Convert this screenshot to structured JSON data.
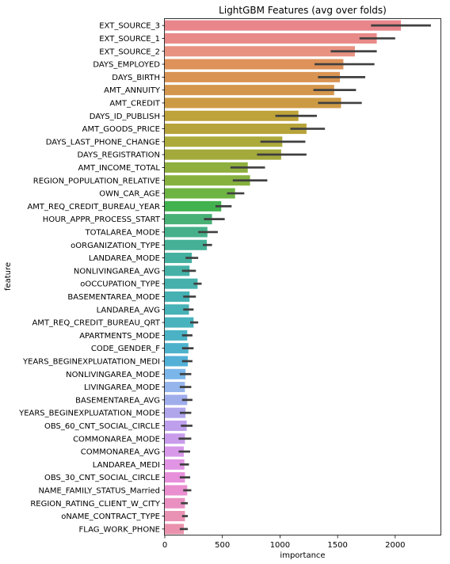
{
  "chart_data": {
    "type": "bar",
    "orientation": "horizontal",
    "title": "LightGBM Features (avg over folds)",
    "xlabel": "importance",
    "ylabel": "feature",
    "xlim": [
      0,
      2400
    ],
    "xticks": [
      0,
      500,
      1000,
      1500,
      2000
    ],
    "grid": false,
    "error_bars": true,
    "categories": [
      "EXT_SOURCE_3",
      "EXT_SOURCE_1",
      "EXT_SOURCE_2",
      "DAYS_EMPLOYED",
      "DAYS_BIRTH",
      "AMT_ANNUITY",
      "AMT_CREDIT",
      "DAYS_ID_PUBLISH",
      "AMT_GOODS_PRICE",
      "DAYS_LAST_PHONE_CHANGE",
      "DAYS_REGISTRATION",
      "AMT_INCOME_TOTAL",
      "REGION_POPULATION_RELATIVE",
      "OWN_CAR_AGE",
      "AMT_REQ_CREDIT_BUREAU_YEAR",
      "HOUR_APPR_PROCESS_START",
      "TOTALAREA_MODE",
      "oORGANIZATION_TYPE",
      "LANDAREA_MODE",
      "NONLIVINGAREA_AVG",
      "oOCCUPATION_TYPE",
      "BASEMENTAREA_MODE",
      "LANDAREA_AVG",
      "AMT_REQ_CREDIT_BUREAU_QRT",
      "APARTMENTS_MODE",
      "CODE_GENDER_F",
      "YEARS_BEGINEXPLUATATION_MEDI",
      "NONLIVINGAREA_MODE",
      "LIVINGAREA_MODE",
      "BASEMENTAREA_AVG",
      "YEARS_BEGINEXPLUATATION_MODE",
      "OBS_60_CNT_SOCIAL_CIRCLE",
      "COMMONAREA_MODE",
      "COMMONAREA_AVG",
      "LANDAREA_MEDI",
      "OBS_30_CNT_SOCIAL_CIRCLE",
      "NAME_FAMILY_STATUS_Married",
      "REGION_RATING_CLIENT_W_CITY",
      "oNAME_CONTRACT_TYPE",
      "FLAG_WORK_PHONE"
    ],
    "values": [
      2050,
      1840,
      1650,
      1550,
      1520,
      1470,
      1530,
      1160,
      1230,
      1020,
      1010,
      720,
      740,
      610,
      490,
      410,
      370,
      365,
      235,
      215,
      285,
      215,
      210,
      250,
      195,
      205,
      200,
      180,
      175,
      195,
      180,
      190,
      175,
      165,
      170,
      175,
      195,
      175,
      175,
      165
    ],
    "error_low": [
      1790,
      1690,
      1440,
      1300,
      1330,
      1290,
      1330,
      960,
      1090,
      830,
      800,
      570,
      590,
      540,
      440,
      340,
      290,
      330,
      180,
      150,
      250,
      160,
      160,
      220,
      150,
      150,
      150,
      130,
      130,
      150,
      130,
      140,
      120,
      120,
      130,
      130,
      160,
      140,
      150,
      130
    ],
    "error_high": [
      2310,
      2000,
      1840,
      1820,
      1740,
      1660,
      1710,
      1320,
      1390,
      1220,
      1230,
      870,
      890,
      690,
      580,
      520,
      460,
      410,
      290,
      270,
      320,
      270,
      250,
      290,
      240,
      250,
      240,
      230,
      230,
      240,
      230,
      240,
      230,
      220,
      210,
      220,
      230,
      200,
      200,
      200
    ],
    "colors": [
      "#e8868b",
      "#e88a88",
      "#e89282",
      "#de9158",
      "#d99352",
      "#d4964c",
      "#cd9a44",
      "#bea23a",
      "#b7a33b",
      "#acaa3b",
      "#a3aa3b",
      "#8faf3f",
      "#86b13f",
      "#6db443",
      "#42b24e",
      "#48b175",
      "#46b08a",
      "#45b096",
      "#44b0a0",
      "#44b0a6",
      "#45b0ac",
      "#45b1b3",
      "#47b2b7",
      "#48b2bd",
      "#4ab2c4",
      "#4eb1cc",
      "#52b0d7",
      "#7ab6ea",
      "#96b5ec",
      "#a0adeb",
      "#b0a6ec",
      "#bd9fec",
      "#c99ceb",
      "#d898ea",
      "#e193e4",
      "#e78fdb",
      "#e98fcf",
      "#e990c1",
      "#ea92b4",
      "#ea92ad"
    ]
  }
}
